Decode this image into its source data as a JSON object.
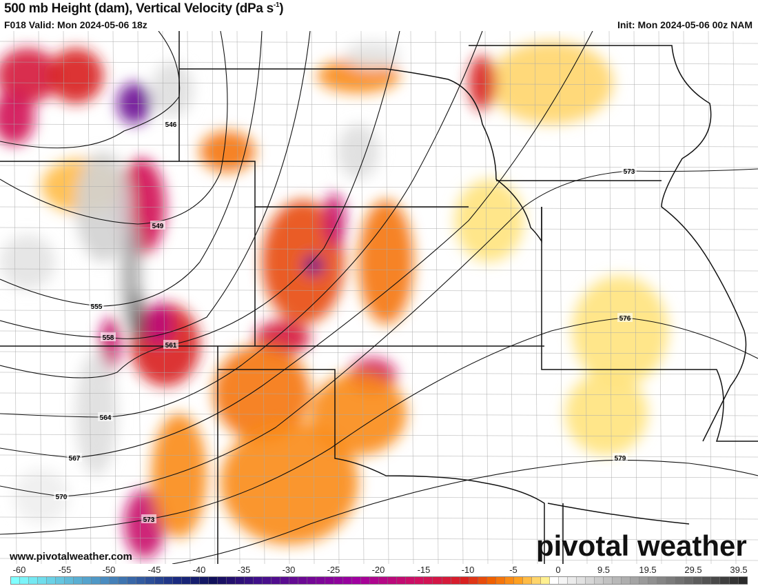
{
  "header": {
    "title": "500 mb Height (dam), Vertical Velocity (dPa s",
    "title_sup": "-1",
    "title_end": ")",
    "valid": "F018 Valid: Mon 2024-05-06 18z",
    "init": "Init: Mon 2024-05-06 00z NAM"
  },
  "footer": {
    "url": "www.pivotalweather.com",
    "logo": "pivotal weather"
  },
  "contour_labels": [
    "546",
    "549",
    "555",
    "558",
    "561",
    "564",
    "567",
    "570",
    "573",
    "573",
    "576",
    "579"
  ],
  "colorbar": {
    "labels": [
      "-60",
      "-55",
      "-50",
      "-45",
      "-40",
      "-35",
      "-30",
      "-25",
      "-20",
      "-15",
      "-10",
      "-5",
      "0",
      "9.5",
      "19.5",
      "29.5",
      "39.5"
    ],
    "stops": [
      {
        "v": -60,
        "c": "#80ffff"
      },
      {
        "v": -50,
        "c": "#4a8cc0"
      },
      {
        "v": -42,
        "c": "#1a2a80"
      },
      {
        "v": -38,
        "c": "#10105a"
      },
      {
        "v": -33,
        "c": "#40108a"
      },
      {
        "v": -22,
        "c": "#a000a0"
      },
      {
        "v": -15,
        "c": "#d01060"
      },
      {
        "v": -10,
        "c": "#d82020"
      },
      {
        "v": -7,
        "c": "#f06000"
      },
      {
        "v": -4,
        "c": "#ffa020"
      },
      {
        "v": -1,
        "c": "#fff090"
      },
      {
        "v": 0,
        "c": "#ffffff"
      },
      {
        "v": 40,
        "c": "#202020"
      }
    ]
  }
}
